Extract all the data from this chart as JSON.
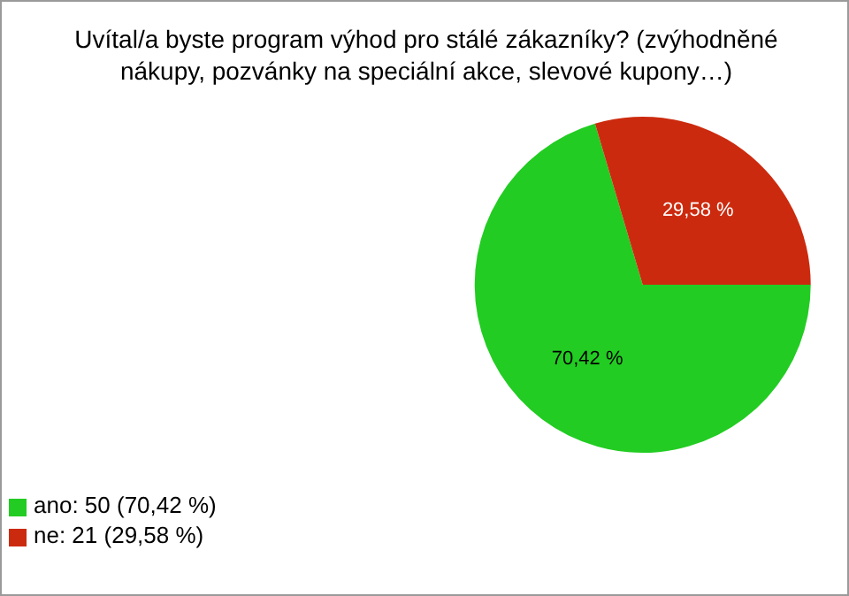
{
  "chart_data": {
    "type": "pie",
    "title": "Uvítal/a byste program výhod pro stálé zákazníky? (zvýhodněné nákupy, pozvánky na speciální akce, slevové kupony…)",
    "categories": [
      "ano: 50 (70,42 %)",
      "ne: 21 (29,58 %)"
    ],
    "values": [
      70.42,
      29.58
    ],
    "value_labels": [
      "70,42 %",
      "29,58 %"
    ],
    "colors": [
      "#22cc22",
      "#cc2a0e"
    ],
    "legend": "bottom left"
  }
}
